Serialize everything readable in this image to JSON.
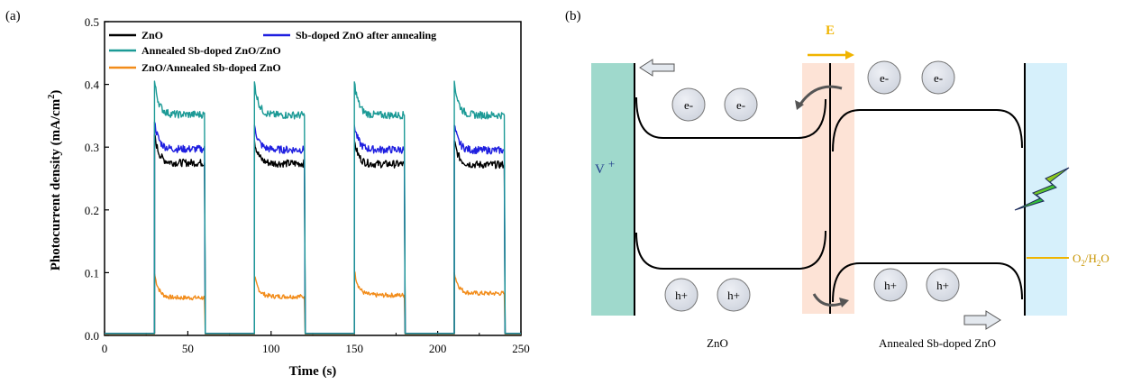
{
  "panels": {
    "a": "(a)",
    "b": "(b)"
  },
  "chart_data": {
    "type": "line",
    "title": "",
    "xlabel": "Time (s)",
    "ylabel": "Photocurrent density (mA/cm",
    "ylabel_sup": "2",
    "ylabel_end": ")",
    "xlim": [
      0,
      250
    ],
    "ylim": [
      0,
      0.5
    ],
    "xticks": [
      "0",
      "50",
      "100",
      "150",
      "200",
      "250"
    ],
    "yticks": [
      "0.0",
      "0.1",
      "0.2",
      "0.3",
      "0.4",
      "0.5"
    ],
    "xtick_values": [
      0,
      50,
      100,
      150,
      200,
      250
    ],
    "ytick_values": [
      0,
      0.1,
      0.2,
      0.3,
      0.4,
      0.5
    ],
    "grid": false,
    "legend_position": "top-left",
    "on_intervals": [
      [
        30,
        60
      ],
      [
        90,
        120
      ],
      [
        150,
        180
      ],
      [
        210,
        240
      ]
    ],
    "series": [
      {
        "name": "ZnO",
        "color": "#000000",
        "peaks": [
          0.32,
          0.31,
          0.31,
          0.31
        ],
        "plateaus": [
          0.275,
          0.274,
          0.273,
          0.272
        ],
        "dark": 0.003
      },
      {
        "name": "Sb-doped ZnO after annealing",
        "color": "#1f1fe0",
        "peaks": [
          0.34,
          0.335,
          0.335,
          0.335
        ],
        "plateaus": [
          0.297,
          0.296,
          0.296,
          0.295
        ],
        "dark": 0.003
      },
      {
        "name": "Annealed Sb-doped ZnO/ZnO",
        "color": "#1c9a96",
        "peaks": [
          0.405,
          0.404,
          0.404,
          0.405
        ],
        "plateaus": [
          0.352,
          0.351,
          0.351,
          0.351
        ],
        "dark": 0.003
      },
      {
        "name": "ZnO/Annealed Sb-doped ZnO",
        "color": "#f28c1a",
        "peaks": [
          0.098,
          0.094,
          0.103,
          0.1
        ],
        "plateaus": [
          0.06,
          0.062,
          0.064,
          0.067
        ],
        "dark": 0.002
      }
    ]
  },
  "diagram": {
    "field_label": "E",
    "vacancy_label": "V",
    "vacancy_sup": "+",
    "electron_label": "e-",
    "hole_label": "h+",
    "redox_label": "O",
    "redox_sub1": "2",
    "redox_mid": "/H",
    "redox_sub2": "2",
    "redox_end": "O",
    "left_material": "ZnO",
    "right_material": "Annealed Sb-doped ZnO",
    "colors": {
      "vacancy_region": "#9fd9cc",
      "interface_region": "#fde3d6",
      "electrolyte_region": "#d6f0fb",
      "carrier_fill": "#dfe3ec",
      "field_arrow": "#f0b400",
      "redox_line": "#f0b400"
    }
  }
}
